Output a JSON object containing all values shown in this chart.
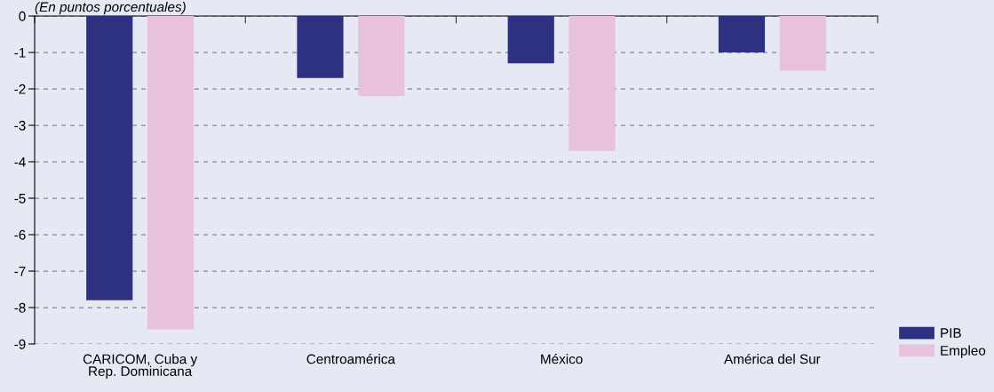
{
  "chart_data": {
    "type": "bar",
    "subtitle": "(En puntos porcentuales)",
    "categories": [
      "CARICOM, Cuba y\nRep. Dominicana",
      "Centroamérica",
      "México",
      "América del Sur"
    ],
    "series": [
      {
        "name": "PIB",
        "color": "#2e3080",
        "values": [
          -7.8,
          -1.7,
          -1.3,
          -1.0
        ]
      },
      {
        "name": "Empleo",
        "color": "#e8c2dc",
        "values": [
          -8.6,
          -2.2,
          -3.7,
          -1.5
        ]
      }
    ],
    "ylim": [
      -9,
      0
    ],
    "yticks": [
      0,
      -1,
      -2,
      -3,
      -4,
      -5,
      -6,
      -7,
      -8,
      -9
    ],
    "grid": "y",
    "legend": "bottom right"
  }
}
